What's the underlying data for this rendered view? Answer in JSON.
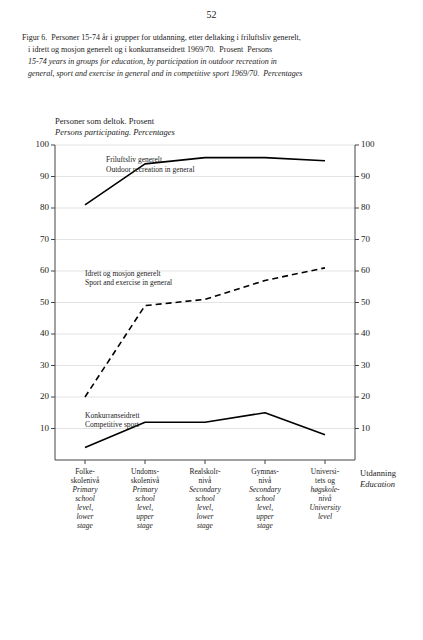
{
  "chart_data": {
    "type": "line",
    "page_number": "52",
    "title": [
      "Figur 6.  Personer 15-74 år i grupper for utdanning, etter deltaking i friluftsliv generelt,",
      "   i idrett og mosjon generelt og i konkurranseidrett 1969/70.  Prosent  Persons",
      "   15-74 years in groups for education, by participation in outdoor recreation in",
      "   general, sport and exercise in general and in competitive sport 1969/70.  Percentages"
    ],
    "y_label": [
      "Personer som deltok. Prosent",
      "Persons participating. Percentages"
    ],
    "x_label": [
      "Utdanning",
      "Education"
    ],
    "categories": [
      [
        "Folke-",
        "skolenivå",
        "Primary",
        "school",
        "level,",
        "lower",
        "stage"
      ],
      [
        "Undoms-",
        "skolenivå",
        "Primary",
        "school",
        "level,",
        "upper",
        "stage"
      ],
      [
        "Realskolr-",
        "nivå",
        "Secondary",
        "school",
        "level,",
        "lower",
        "stage"
      ],
      [
        "Gymnas-",
        "nivå",
        "Secondary",
        "school",
        "level,",
        "upper",
        "stage"
      ],
      [
        "Universi-",
        "tets og",
        "høgskole-",
        "nivå",
        "University",
        "level"
      ]
    ],
    "series": [
      {
        "color": "#000000",
        "line_style": "solid",
        "values": [
          81,
          94,
          96,
          96,
          95
        ]
      },
      {
        "color": "#000000",
        "line_style": "dashed",
        "values": [
          20,
          49,
          51,
          57,
          61
        ]
      },
      {
        "color": "#000000",
        "line_style": "solid",
        "values": [
          4,
          12,
          12,
          15,
          8
        ]
      }
    ],
    "annotations": [
      {
        "x": 0.35,
        "y": 97,
        "text": [
          "Friluftsliv generelt",
          "Outdoor recreation in general"
        ]
      },
      {
        "x": 0.0,
        "y": 61,
        "text": [
          "Idrett og mosjon generelt",
          "Sport and exercise in general"
        ]
      },
      {
        "x": 0.0,
        "y": 16,
        "text": [
          "Konkurranseidrett",
          "Competitive sport"
        ]
      }
    ],
    "ylim": [
      0,
      100
    ],
    "yticks": [
      10,
      20,
      30,
      40,
      50,
      60,
      70,
      80,
      90,
      100
    ],
    "y2lim": [
      0,
      100
    ],
    "y2ticks": [
      10,
      20,
      30,
      40,
      50,
      60,
      70,
      80,
      90,
      100
    ]
  }
}
